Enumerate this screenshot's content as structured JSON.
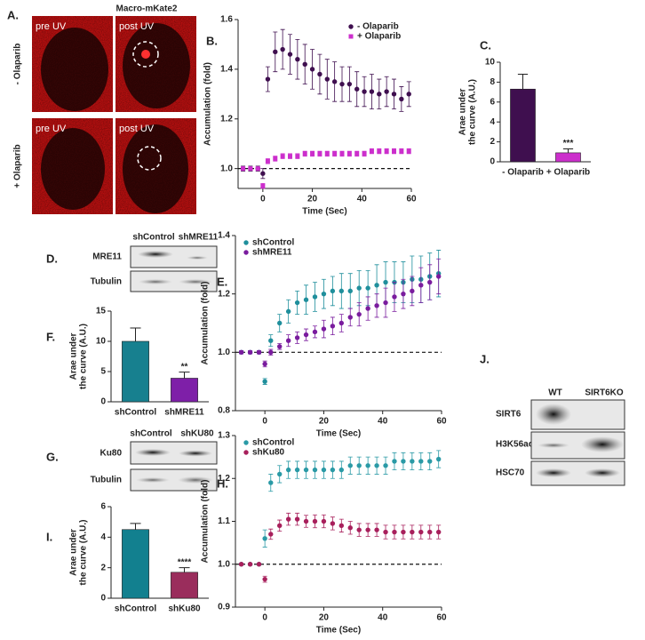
{
  "panel_a": {
    "label": "A.",
    "title": "Macro-mKate2",
    "columns": [
      "pre UV",
      "post UV"
    ],
    "rows": [
      "- Olaparib",
      "+ Olaparib"
    ]
  },
  "blots": [
    {
      "label": "D.",
      "lanes": [
        "shControl",
        "shMRE11"
      ],
      "rows": [
        "MRE11",
        "Tubulin"
      ]
    },
    {
      "label": "G.",
      "lanes": [
        "shControl",
        "shKU80"
      ],
      "rows": [
        "Ku80",
        "Tubulin"
      ]
    },
    {
      "label": "J.",
      "lanes": [
        "WT",
        "SIRT6KO"
      ],
      "rows": [
        "SIRT6",
        "H3K56ac",
        "HSC70"
      ]
    }
  ],
  "chart_data": [
    {
      "type": "errorbar",
      "label": "B.",
      "xlabel": "Time (Sec)",
      "ylabel": "Accumulation (fold)",
      "x": [
        -8,
        -5,
        -2,
        0,
        2,
        5,
        8,
        11,
        14,
        17,
        20,
        23,
        26,
        29,
        32,
        35,
        38,
        41,
        44,
        47,
        50,
        53,
        56,
        59
      ],
      "xlim": [
        -10,
        60
      ],
      "xticks": [
        0,
        20,
        40,
        60
      ],
      "ylim": [
        0.92,
        1.6
      ],
      "yticks": [
        {
          "value": 1,
          "label": "1.0"
        },
        1.2,
        1.4,
        1.6
      ],
      "hline": 1,
      "legend": "top-right",
      "series": [
        {
          "name": "- Olaparib",
          "color": "#3f0f4f",
          "marker": "circle",
          "values": [
            1.0,
            1.0,
            1.0,
            0.98,
            1.36,
            1.47,
            1.48,
            1.46,
            1.44,
            1.42,
            1.4,
            1.38,
            1.36,
            1.35,
            1.34,
            1.34,
            1.32,
            1.31,
            1.31,
            1.3,
            1.31,
            1.3,
            1.28,
            1.3
          ],
          "errors": [
            0.01,
            0.01,
            0.01,
            0.02,
            0.05,
            0.08,
            0.08,
            0.08,
            0.08,
            0.08,
            0.08,
            0.08,
            0.08,
            0.08,
            0.07,
            0.07,
            0.07,
            0.06,
            0.07,
            0.06,
            0.06,
            0.06,
            0.05,
            0.05
          ]
        },
        {
          "name": "+ Olaparib",
          "color": "#cc2fcc",
          "marker": "square",
          "values": [
            1.0,
            1.0,
            1.0,
            0.93,
            1.03,
            1.04,
            1.05,
            1.05,
            1.05,
            1.06,
            1.06,
            1.06,
            1.06,
            1.06,
            1.06,
            1.06,
            1.06,
            1.06,
            1.07,
            1.07,
            1.07,
            1.07,
            1.07,
            1.07
          ],
          "errors": [
            0.005,
            0.005,
            0.005,
            0.01,
            0.01,
            0.01,
            0.01,
            0.01,
            0.01,
            0.01,
            0.01,
            0.01,
            0.01,
            0.01,
            0.01,
            0.01,
            0.01,
            0.01,
            0.01,
            0.01,
            0.01,
            0.01,
            0.01,
            0.01
          ]
        }
      ]
    },
    {
      "type": "bar",
      "label": "C.",
      "ylabel": [
        "Arae under",
        "the curve (A.U.)"
      ],
      "categories": [
        "- Olaparib",
        "+ Olaparib"
      ],
      "values": [
        7.3,
        0.9
      ],
      "errors": [
        1.5,
        0.4
      ],
      "colors": [
        "#3f0f4f",
        "#cc2fcc"
      ],
      "ylim": [
        0,
        10
      ],
      "yticks": [
        0,
        2,
        4,
        6,
        8,
        10
      ],
      "annotation": "***"
    },
    {
      "type": "errorbar",
      "label": "E.",
      "xlabel": "Time (Sec)",
      "ylabel": "Accumulation (fold)",
      "x": [
        -8,
        -5,
        -2,
        0,
        2,
        5,
        8,
        11,
        14,
        17,
        20,
        23,
        26,
        29,
        32,
        35,
        38,
        41,
        44,
        47,
        50,
        53,
        56,
        59
      ],
      "xlim": [
        -10,
        60
      ],
      "xticks": [
        0,
        20,
        40,
        60
      ],
      "ylim": [
        0.8,
        1.4
      ],
      "yticks": [
        0.8,
        {
          "value": 1,
          "label": "1.0"
        },
        1.2,
        1.4
      ],
      "hline": 1,
      "legend": "top-left",
      "series": [
        {
          "name": "shControl",
          "color": "#1f8f9c",
          "marker": "circle",
          "values": [
            1.0,
            1.0,
            1.0,
            0.9,
            1.04,
            1.1,
            1.14,
            1.17,
            1.18,
            1.19,
            1.2,
            1.21,
            1.21,
            1.21,
            1.22,
            1.22,
            1.23,
            1.24,
            1.24,
            1.24,
            1.25,
            1.25,
            1.26,
            1.27
          ],
          "errors": [
            0.005,
            0.005,
            0.005,
            0.01,
            0.02,
            0.03,
            0.04,
            0.04,
            0.05,
            0.05,
            0.05,
            0.05,
            0.06,
            0.06,
            0.06,
            0.06,
            0.07,
            0.07,
            0.07,
            0.07,
            0.08,
            0.08,
            0.08,
            0.08
          ]
        },
        {
          "name": "shMRE11",
          "color": "#7a1c9e",
          "marker": "circle",
          "values": [
            1.0,
            1.0,
            1.0,
            0.96,
            1.0,
            1.02,
            1.04,
            1.05,
            1.06,
            1.07,
            1.08,
            1.09,
            1.1,
            1.12,
            1.13,
            1.15,
            1.16,
            1.17,
            1.19,
            1.2,
            1.21,
            1.23,
            1.24,
            1.26
          ],
          "errors": [
            0.005,
            0.005,
            0.005,
            0.01,
            0.01,
            0.01,
            0.02,
            0.02,
            0.02,
            0.02,
            0.03,
            0.03,
            0.03,
            0.03,
            0.04,
            0.04,
            0.04,
            0.05,
            0.05,
            0.05,
            0.05,
            0.06,
            0.06,
            0.06
          ]
        }
      ]
    },
    {
      "type": "bar",
      "label": "F.",
      "ylabel": [
        "Arae under",
        "the curve (A.U.)"
      ],
      "categories": [
        "shControl",
        "shMRE11"
      ],
      "values": [
        10.0,
        3.9
      ],
      "errors": [
        2.2,
        1.0
      ],
      "colors": [
        "#17808f",
        "#7e1fa8"
      ],
      "ylim": [
        0,
        15
      ],
      "yticks": [
        0,
        5,
        10,
        15
      ],
      "annotation": "**"
    },
    {
      "type": "errorbar",
      "label": "H.",
      "xlabel": "Time (Sec)",
      "ylabel": "Accumulation (fold)",
      "x": [
        -8,
        -5,
        -2,
        0,
        2,
        5,
        8,
        11,
        14,
        17,
        20,
        23,
        26,
        29,
        32,
        35,
        38,
        41,
        44,
        47,
        50,
        53,
        56,
        59
      ],
      "xlim": [
        -10,
        60
      ],
      "xticks": [
        0,
        20,
        40,
        60
      ],
      "ylim": [
        0.9,
        1.3
      ],
      "yticks": [
        0.9,
        {
          "value": 1,
          "label": "1.0"
        },
        1.1,
        1.2,
        1.3
      ],
      "hline": 1,
      "legend": "top-left",
      "series": [
        {
          "name": "shControl",
          "color": "#2a9aa6",
          "marker": "circle",
          "values": [
            1.0,
            1.0,
            1.0,
            1.06,
            1.19,
            1.21,
            1.22,
            1.22,
            1.22,
            1.22,
            1.22,
            1.22,
            1.22,
            1.23,
            1.23,
            1.23,
            1.23,
            1.23,
            1.24,
            1.24,
            1.24,
            1.24,
            1.24,
            1.245
          ],
          "errors": [
            0.002,
            0.002,
            0.002,
            0.02,
            0.02,
            0.02,
            0.02,
            0.02,
            0.02,
            0.02,
            0.02,
            0.02,
            0.02,
            0.02,
            0.02,
            0.02,
            0.02,
            0.02,
            0.02,
            0.02,
            0.02,
            0.02,
            0.02,
            0.02
          ]
        },
        {
          "name": "shKu80",
          "color": "#a8205c",
          "marker": "circle",
          "values": [
            1.0,
            1.0,
            1.0,
            0.965,
            1.07,
            1.09,
            1.105,
            1.105,
            1.1,
            1.1,
            1.1,
            1.095,
            1.09,
            1.085,
            1.08,
            1.08,
            1.08,
            1.075,
            1.075,
            1.075,
            1.075,
            1.075,
            1.075,
            1.075
          ],
          "errors": [
            0.002,
            0.002,
            0.002,
            0.007,
            0.012,
            0.013,
            0.014,
            0.014,
            0.014,
            0.015,
            0.015,
            0.015,
            0.015,
            0.015,
            0.015,
            0.015,
            0.015,
            0.016,
            0.016,
            0.016,
            0.016,
            0.016,
            0.016,
            0.016
          ]
        }
      ]
    },
    {
      "type": "bar",
      "label": "I.",
      "ylabel": [
        "Arae under",
        "the curve (A.U.)"
      ],
      "categories": [
        "shControl",
        "shKu80"
      ],
      "values": [
        4.5,
        1.7
      ],
      "errors": [
        0.4,
        0.3
      ],
      "colors": [
        "#12808f",
        "#9a2d5c"
      ],
      "ylim": [
        0,
        6
      ],
      "yticks": [
        0,
        2,
        4,
        6
      ],
      "annotation": "****"
    }
  ]
}
